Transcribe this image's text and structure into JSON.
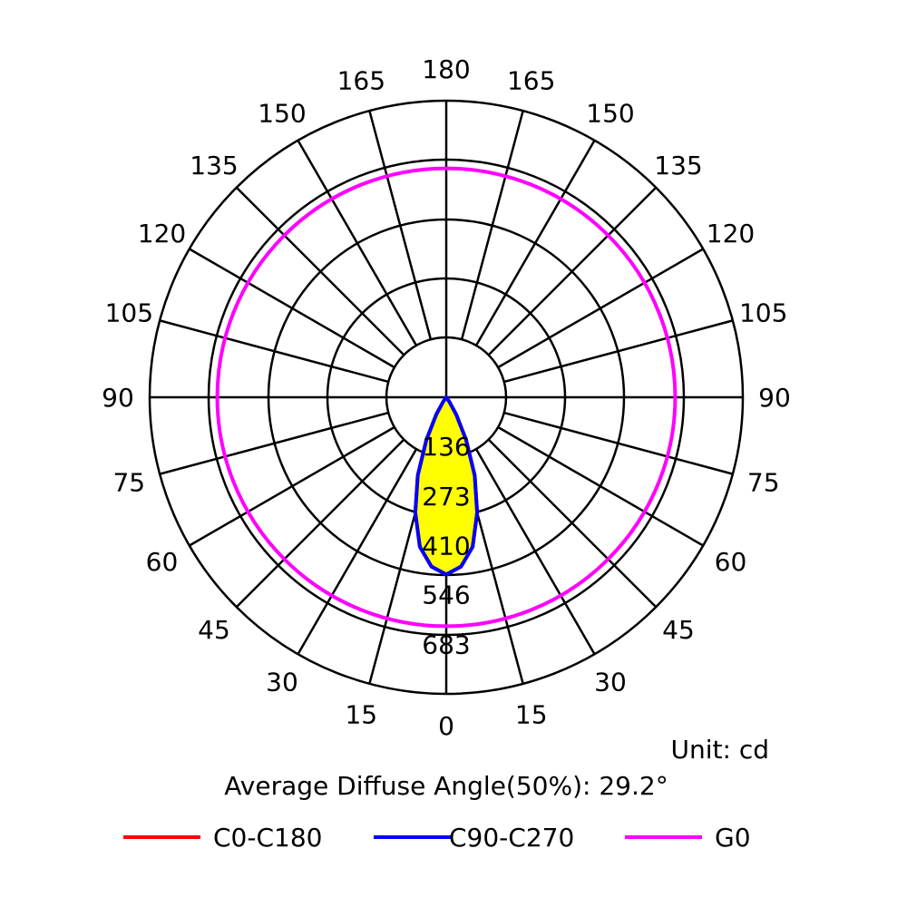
{
  "chart_data": {
    "type": "polar",
    "angle_ticks": {
      "bottom": "0",
      "top": "180",
      "left": [
        "15",
        "30",
        "45",
        "60",
        "75",
        "90",
        "105",
        "120",
        "135",
        "150",
        "165"
      ],
      "right": [
        "15",
        "30",
        "45",
        "60",
        "75",
        "90",
        "105",
        "120",
        "135",
        "150",
        "165"
      ]
    },
    "radial_ticks": [
      136,
      273,
      410,
      546,
      683
    ],
    "radial_tick_labels": [
      "136",
      "273",
      "410",
      "546",
      "683"
    ],
    "rmax": 820,
    "grid": true,
    "unit_text": "Unit: cd",
    "diffuse_angle_text": "Average Diffuse Angle(50%): 29.2°",
    "legend_placement": "bottom",
    "series": [
      {
        "name": "C0-C180",
        "color": "#ff0000",
        "angles": [
          0,
          5,
          10,
          15,
          20,
          25,
          30,
          35,
          40,
          90,
          180
        ],
        "values": [
          490,
          470,
          420,
          330,
          230,
          130,
          55,
          15,
          0,
          0,
          0
        ]
      },
      {
        "name": "C90-C270",
        "color": "#0000ff",
        "angles": [
          0,
          5,
          10,
          15,
          20,
          25,
          30,
          35,
          40,
          90,
          180
        ],
        "values": [
          490,
          470,
          420,
          330,
          230,
          130,
          55,
          15,
          0,
          0,
          0
        ]
      },
      {
        "name": "G0",
        "color": "#ff00ff",
        "constant_value": 633
      }
    ],
    "fill_color": "#ffff00"
  }
}
